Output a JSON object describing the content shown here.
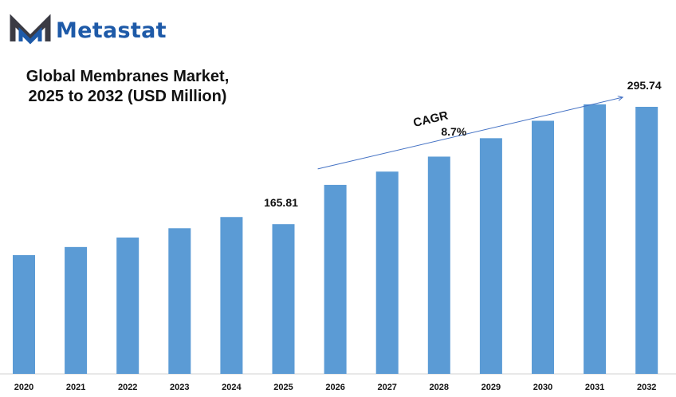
{
  "brand": {
    "name": "Metastat",
    "colors": {
      "dark": "#3b3b44",
      "blue": "#1e5aa8"
    }
  },
  "chart_data": {
    "type": "bar",
    "title": "Global Membranes Market,",
    "subtitle": "2025 to 2032 (USD Million)",
    "categories": [
      "2020",
      "2021",
      "2022",
      "2023",
      "2024",
      "2025",
      "2026",
      "2027",
      "2028",
      "2029",
      "2030",
      "2031",
      "2032"
    ],
    "values": [
      131.5,
      140.5,
      151.0,
      161.3,
      173.7,
      165.81,
      209.3,
      224.0,
      240.6,
      261.0,
      280.3,
      298.5,
      295.74
    ],
    "data_labels": [
      {
        "category": "2025",
        "text": "165.81"
      },
      {
        "category": "2032",
        "text": "295.74"
      }
    ],
    "annotation": {
      "label": "CAGR",
      "value": "8.7%"
    },
    "bar_color": "#5b9bd5",
    "grid": false,
    "ylim": [
      0,
      340
    ]
  }
}
